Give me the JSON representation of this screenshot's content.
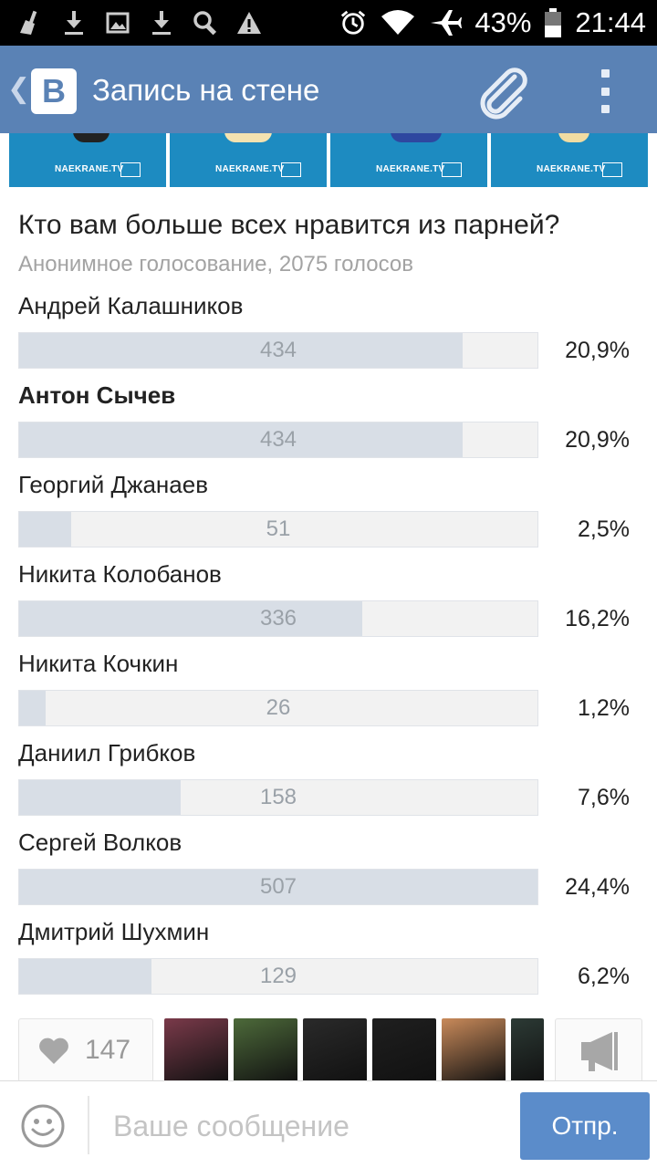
{
  "status_bar": {
    "battery": "43%",
    "time": "21:44",
    "icons": [
      "broom-icon",
      "download-icon",
      "image-icon",
      "download-icon",
      "search-icon",
      "warning-icon",
      "alarm-icon",
      "wifi-icon",
      "airplane-icon",
      "battery-icon"
    ]
  },
  "app_bar": {
    "title": "Запись на стене",
    "logo": "В",
    "back_icon": "chevron-left-icon",
    "attach_icon": "paperclip-icon",
    "menu_icon": "overflow-menu-icon"
  },
  "photos": {
    "watermark": "NAEKRANE.TV",
    "items": [
      {
        "shape_color": "#222222"
      },
      {
        "shape_color": "#f4e2b0"
      },
      {
        "shape_color": "#2e47a0"
      },
      {
        "shape_color": "#f1dca2"
      }
    ]
  },
  "poll": {
    "question": "Кто вам больше всех нравится из парней?",
    "subtitle": "Анонимное голосование, 2075 голосов",
    "max_votes": 507,
    "options": [
      {
        "name": "Андрей Калашников",
        "votes": "434",
        "percent": "20,9%",
        "bold": false
      },
      {
        "name": "Антон Сычев",
        "votes": "434",
        "percent": "20,9%",
        "bold": true
      },
      {
        "name": "Георгий Джанаев",
        "votes": "51",
        "percent": "2,5%",
        "bold": false
      },
      {
        "name": "Никита Колобанов",
        "votes": "336",
        "percent": "16,2%",
        "bold": false
      },
      {
        "name": "Никита Кочкин",
        "votes": "26",
        "percent": "1,2%",
        "bold": false
      },
      {
        "name": "Даниил Грибков",
        "votes": "158",
        "percent": "7,6%",
        "bold": false
      },
      {
        "name": "Сергей Волков",
        "votes": "507",
        "percent": "24,4%",
        "bold": false
      },
      {
        "name": "Дмитрий Шухмин",
        "votes": "129",
        "percent": "6,2%",
        "bold": false
      }
    ]
  },
  "likes": {
    "count": "147",
    "icon": "heart-icon",
    "share_icon": "megaphone-icon",
    "avatars": [
      {
        "color": "#7a3a4a"
      },
      {
        "color": "#4d6a3a"
      },
      {
        "color": "#2a2a2a"
      },
      {
        "color": "#1f1f1f"
      },
      {
        "color": "#c98a5a"
      },
      {
        "color": "#2c3a35"
      }
    ]
  },
  "compose": {
    "placeholder": "Ваше сообщение",
    "send_label": "Отпр.",
    "smile_icon": "smile-icon"
  },
  "colors": {
    "app_bar": "#5a82b5",
    "bar_fill": "#d8dee6",
    "bar_track": "#f2f2f2",
    "send_button": "#5b8cca"
  }
}
